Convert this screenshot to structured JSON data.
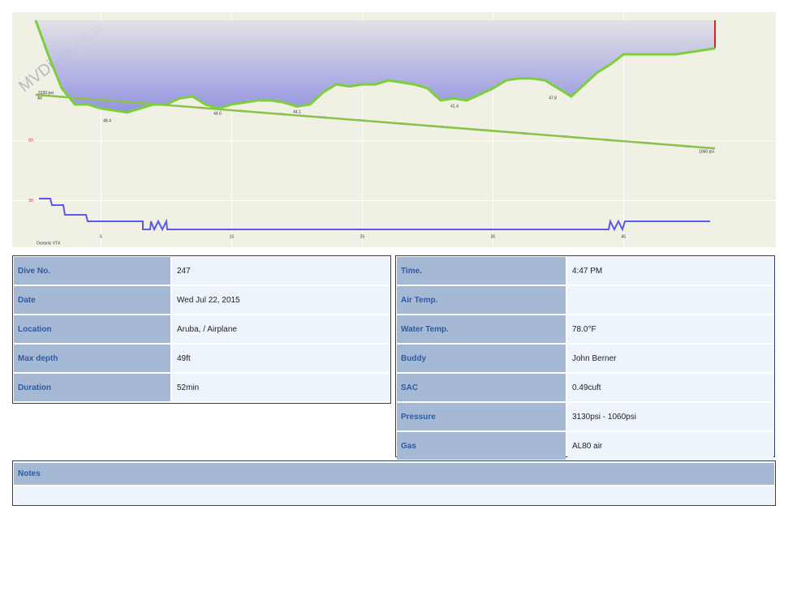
{
  "chart_data": {
    "type": "line",
    "watermark": "MVDives.com",
    "x": [
      0,
      1,
      2,
      3,
      4,
      5,
      6,
      7,
      8,
      9,
      10,
      11,
      12,
      13,
      14,
      15,
      16,
      17,
      18,
      19,
      20,
      21,
      22,
      23,
      24,
      25,
      26,
      27,
      28,
      29,
      30,
      31,
      32,
      33,
      34,
      35,
      36,
      37,
      38,
      39,
      40,
      41,
      42,
      43,
      44,
      45,
      46,
      47,
      48,
      49,
      50,
      51,
      52
    ],
    "series": [
      {
        "name": "Depth",
        "color": "#7ccf3a",
        "values": [
          0,
          18,
          34,
          42,
          42,
          44,
          45,
          46,
          44,
          42,
          42,
          39,
          38,
          42,
          44,
          42,
          41,
          40,
          40,
          41,
          43,
          42,
          36,
          32,
          33,
          32,
          32,
          30,
          31,
          32,
          34,
          40,
          39,
          40,
          37,
          34,
          30,
          29,
          29,
          30,
          34,
          38,
          32,
          26,
          22,
          17,
          17,
          17,
          17,
          17,
          16,
          15,
          14
        ]
      },
      {
        "name": "Pressure",
        "color": "#8bc34a",
        "axis": "y2",
        "x": [
          0,
          52
        ],
        "values": [
          3130,
          1060
        ],
        "value_labels": [
          "3130 psi",
          "1060 psi"
        ]
      }
    ],
    "annotations": [
      "Air",
      "48.4",
      "44.6",
      "44.1",
      "41.4",
      "47.8",
      "Oceanic VT4"
    ],
    "xlim": [
      0,
      52
    ],
    "xticks": [
      5,
      15,
      25,
      35,
      45
    ],
    "ylim": [
      0,
      110
    ],
    "yticks": [
      60,
      90
    ],
    "reversed": true,
    "y2lim": [
      -2500,
      6000
    ]
  },
  "left_table": {
    "rows": [
      [
        "Dive No.",
        "247"
      ],
      [
        "Date",
        "Wed Jul 22, 2015"
      ],
      [
        "Location",
        "Aruba, / Airplane"
      ],
      [
        "Max depth",
        "49ft"
      ],
      [
        "Duration",
        "52min"
      ]
    ]
  },
  "right_table": {
    "rows": [
      [
        "Time.",
        "4:47 PM"
      ],
      [
        "Air Temp.",
        null
      ],
      [
        "Water Temp.",
        "78.0°F"
      ],
      [
        "Buddy",
        "John Berner"
      ],
      [
        "SAC",
        "0.49cuft"
      ],
      [
        "Pressure",
        "3130psi - 1060psi"
      ],
      [
        "Gas",
        "AL80 air"
      ]
    ]
  },
  "notes": {
    "title": "Notes"
  }
}
